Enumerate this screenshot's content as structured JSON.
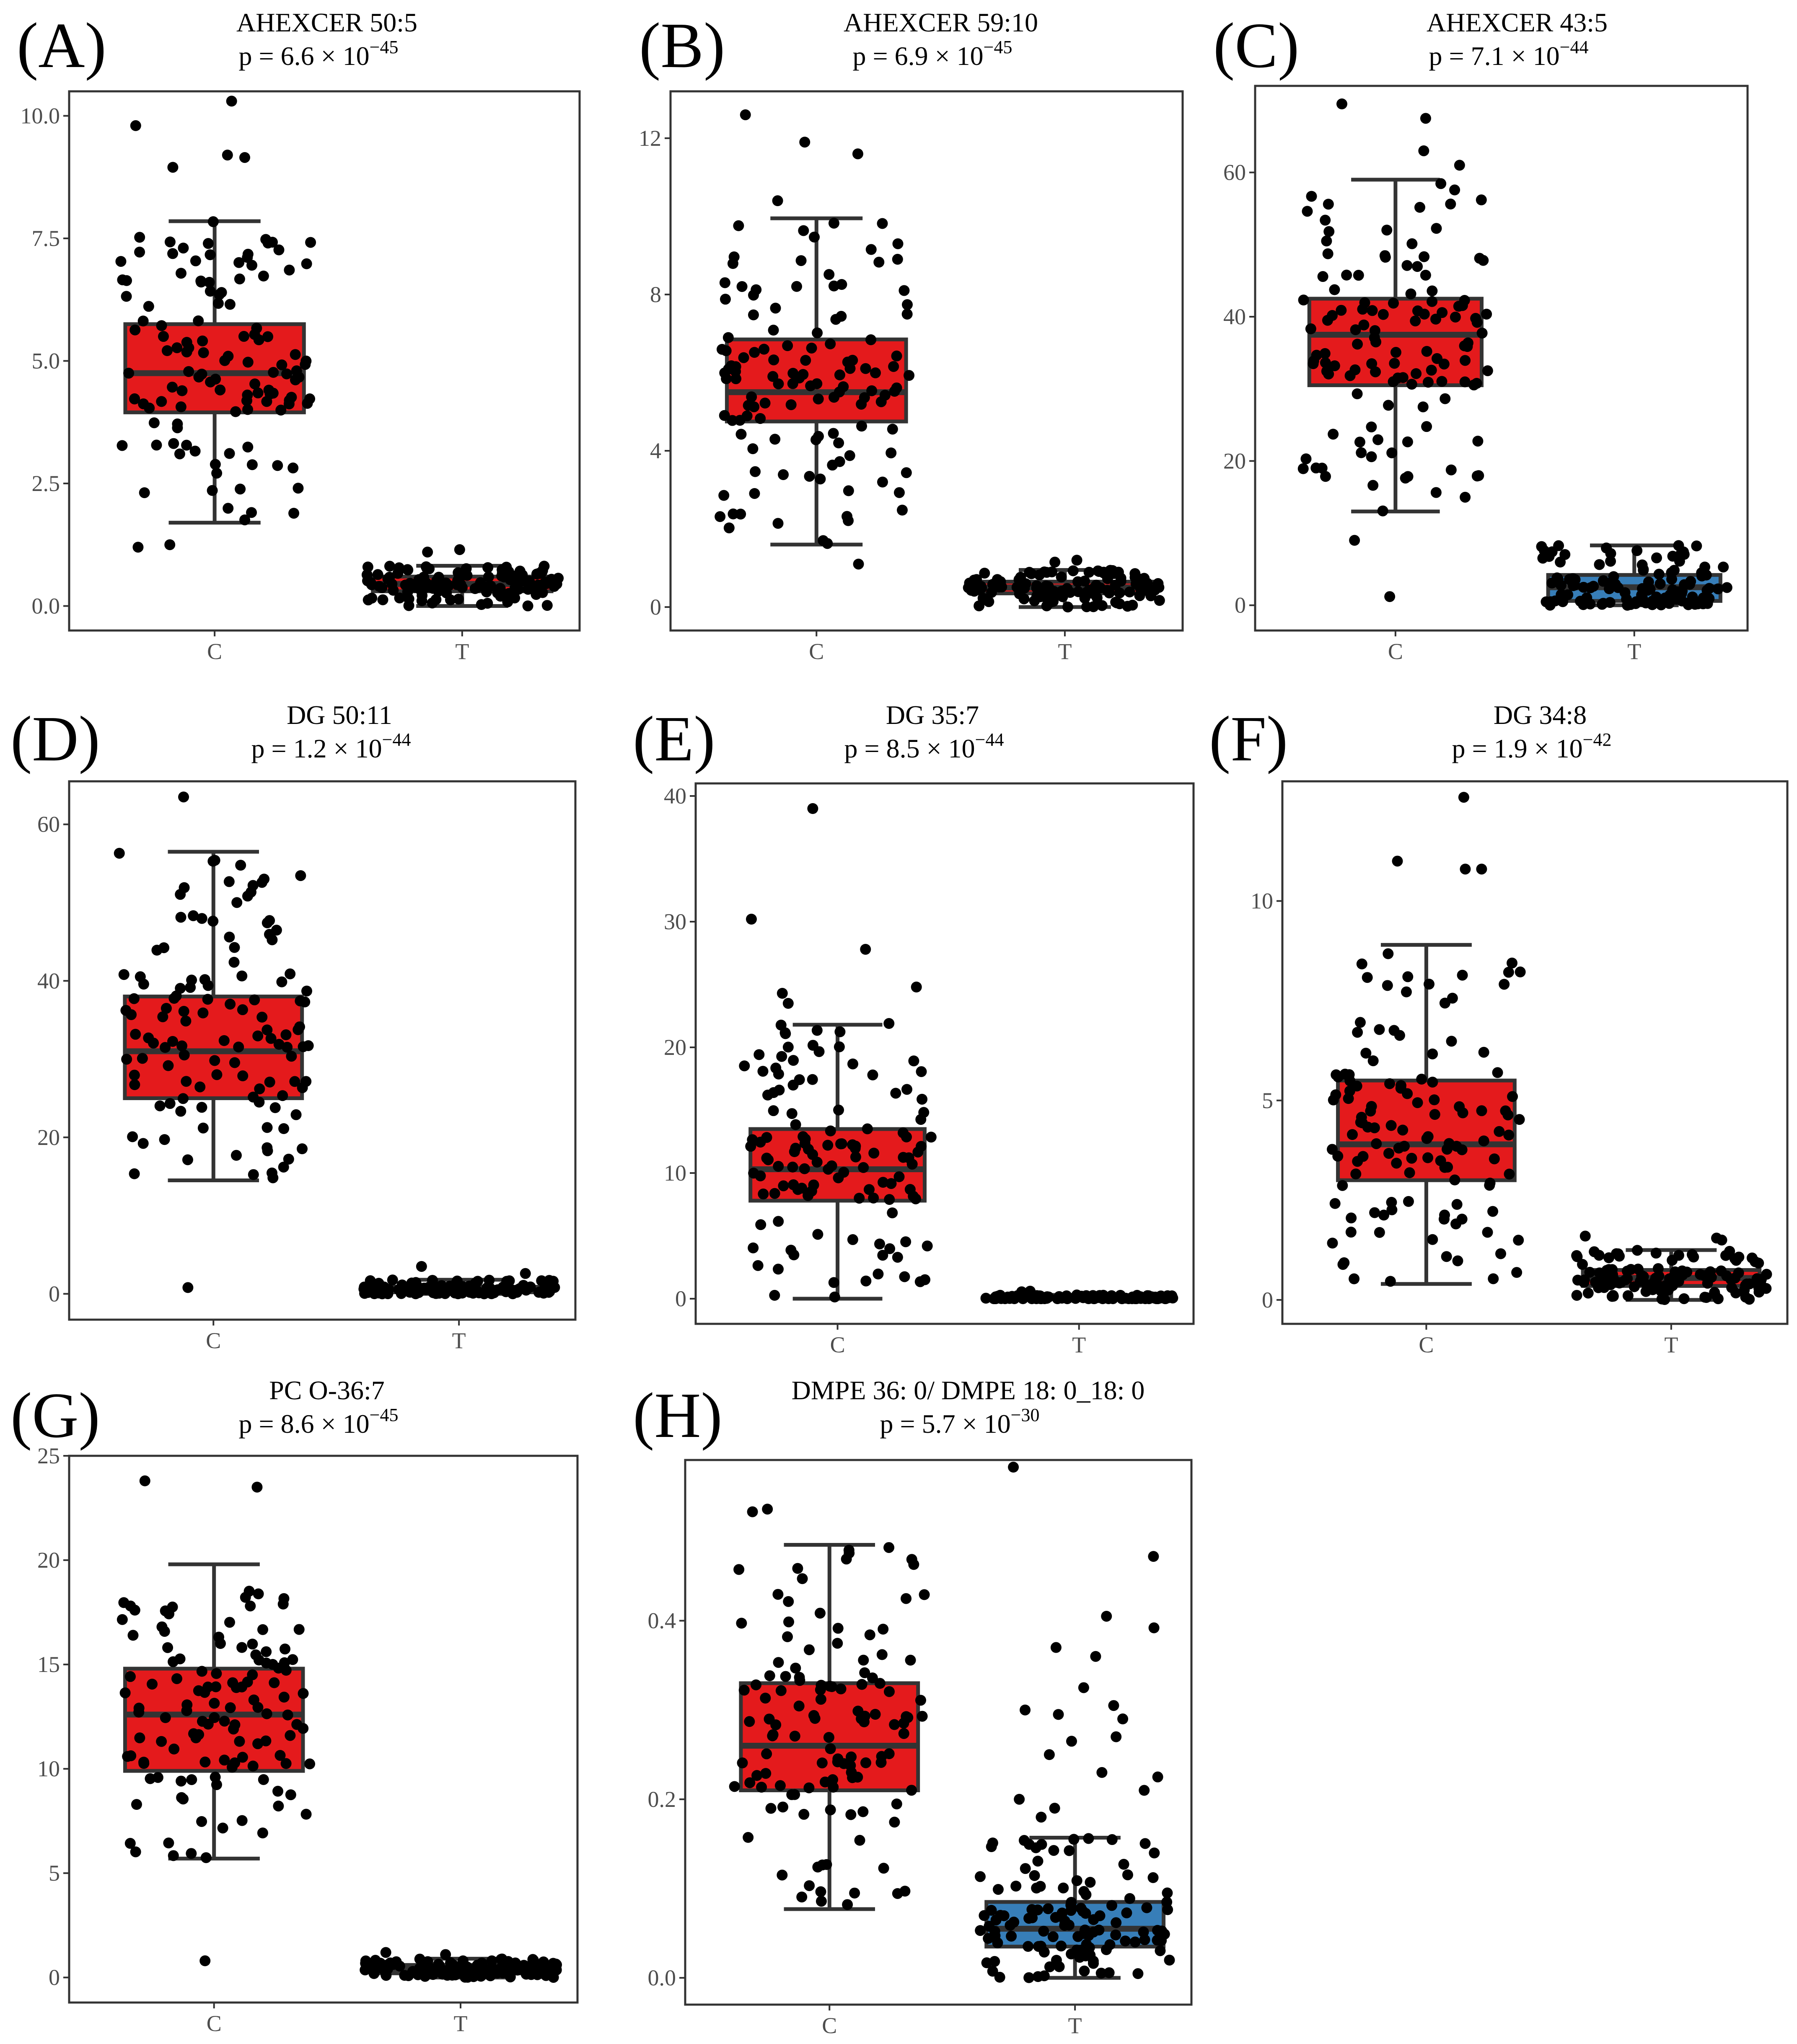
{
  "colors": {
    "control": "#e41a1c",
    "treatment": "#377eb8",
    "point": "#000000"
  },
  "chart_data": [
    {
      "type": "box",
      "panel": "(A)",
      "title": "AHEXCER 50:5",
      "p_prefix": "p = 6.6 × 10",
      "p_exp": "−45",
      "categories": [
        "C",
        "T"
      ],
      "ylim": [
        -0.5,
        10.5
      ],
      "yticks": [
        0,
        2.5,
        5,
        7.5,
        10
      ],
      "ytick_labels": [
        "0.0",
        "2.5",
        "5.0",
        "7.5",
        "10.0"
      ],
      "groups": [
        {
          "name": "C",
          "color": "#e41a1c",
          "q1": 3.95,
          "median": 4.75,
          "q3": 5.75,
          "whisker_low": 1.7,
          "whisker_high": 7.85,
          "outliers": [
            10.3,
            9.2,
            9.15,
            9.8,
            8.95,
            1.25,
            1.2
          ],
          "points_n": 120,
          "spread": [
            1.7,
            7.85
          ]
        },
        {
          "name": "T",
          "color": "#e41a1c",
          "q1": 0.3,
          "median": 0.45,
          "q3": 0.6,
          "whisker_low": 0.0,
          "whisker_high": 0.82,
          "outliers": [
            1.15,
            1.1
          ],
          "points_n": 120,
          "spread": [
            0.0,
            0.82
          ]
        }
      ]
    },
    {
      "type": "box",
      "panel": "(B)",
      "title": "AHEXCER 59:10",
      "p_prefix": "p = 6.9 × 10",
      "p_exp": "−45",
      "categories": [
        "C",
        "T"
      ],
      "ylim": [
        -0.6,
        13.2
      ],
      "yticks": [
        0,
        4,
        8,
        12
      ],
      "ytick_labels": [
        "0",
        "4",
        "8",
        "12"
      ],
      "groups": [
        {
          "name": "C",
          "color": "#e41a1c",
          "q1": 4.75,
          "median": 5.5,
          "q3": 6.85,
          "whisker_low": 1.6,
          "whisker_high": 9.95,
          "outliers": [
            12.6,
            11.9,
            11.6,
            10.4,
            1.1
          ],
          "points_n": 120,
          "spread": [
            1.6,
            9.95
          ]
        },
        {
          "name": "T",
          "color": "#e41a1c",
          "q1": 0.35,
          "median": 0.5,
          "q3": 0.65,
          "whisker_low": 0.0,
          "whisker_high": 0.95,
          "outliers": [
            1.2,
            1.15
          ],
          "points_n": 120,
          "spread": [
            0.0,
            0.95
          ]
        }
      ]
    },
    {
      "type": "box",
      "panel": "(C)",
      "title": "AHEXCER 43:5",
      "p_prefix": "p = 7.1 × 10",
      "p_exp": "−44",
      "categories": [
        "C",
        "T"
      ],
      "ylim": [
        -3.5,
        72
      ],
      "yticks": [
        0,
        20,
        40,
        60
      ],
      "ytick_labels": [
        "0",
        "20",
        "40",
        "60"
      ],
      "groups": [
        {
          "name": "C",
          "color": "#e41a1c",
          "q1": 30.5,
          "median": 37.5,
          "q3": 42.5,
          "whisker_low": 13.0,
          "whisker_high": 59.0,
          "outliers": [
            69.5,
            67.5,
            63.0,
            61.0,
            9.0,
            1.2
          ],
          "points_n": 120,
          "spread": [
            13.0,
            59.0
          ]
        },
        {
          "name": "T",
          "color": "#377eb8",
          "q1": 0.6,
          "median": 2.5,
          "q3": 4.2,
          "whisker_low": 0.0,
          "whisker_high": 8.3,
          "outliers": [],
          "points_n": 120,
          "spread": [
            0.0,
            8.3
          ]
        }
      ]
    },
    {
      "type": "box",
      "panel": "(D)",
      "title": "DG 50:11",
      "p_prefix": "p = 1.2 × 10",
      "p_exp": "−44",
      "categories": [
        "C",
        "T"
      ],
      "ylim": [
        -3.3,
        65.5
      ],
      "yticks": [
        0,
        20,
        40,
        60
      ],
      "ytick_labels": [
        "0",
        "20",
        "40",
        "60"
      ],
      "groups": [
        {
          "name": "C",
          "color": "#e41a1c",
          "q1": 25.0,
          "median": 31.0,
          "q3": 38.0,
          "whisker_low": 14.5,
          "whisker_high": 56.5,
          "outliers": [
            63.5,
            0.8
          ],
          "points_n": 120,
          "spread": [
            14.5,
            56.5
          ]
        },
        {
          "name": "T",
          "color": "#e41a1c",
          "q1": 0.2,
          "median": 0.5,
          "q3": 0.9,
          "whisker_low": 0.0,
          "whisker_high": 1.8,
          "outliers": [
            3.5,
            2.6
          ],
          "points_n": 120,
          "spread": [
            0.0,
            1.8
          ]
        }
      ]
    },
    {
      "type": "box",
      "panel": "(E)",
      "title": "DG 35:7",
      "p_prefix": "p = 8.5 × 10",
      "p_exp": "−44",
      "categories": [
        "C",
        "T"
      ],
      "ylim": [
        -2.0,
        41.0
      ],
      "yticks": [
        0,
        10,
        20,
        30,
        40
      ],
      "ytick_labels": [
        "0",
        "10",
        "20",
        "30",
        "40"
      ],
      "groups": [
        {
          "name": "C",
          "color": "#e41a1c",
          "q1": 7.8,
          "median": 10.3,
          "q3": 13.5,
          "whisker_low": 0.0,
          "whisker_high": 21.8,
          "outliers": [
            39.0,
            30.2,
            27.8,
            24.8,
            24.3,
            23.5,
            21.9
          ],
          "points_n": 120,
          "spread": [
            0.0,
            21.8
          ]
        },
        {
          "name": "T",
          "color": "#e41a1c",
          "q1": 0.0,
          "median": 0.05,
          "q3": 0.15,
          "whisker_low": 0.0,
          "whisker_high": 0.3,
          "outliers": [
            0.6,
            0.55
          ],
          "points_n": 120,
          "spread": [
            0.0,
            0.3
          ]
        }
      ]
    },
    {
      "type": "box",
      "panel": "(F)",
      "title": "DG 34:8",
      "p_prefix": "p = 1.9 × 10",
      "p_exp": "−42",
      "categories": [
        "C",
        "T"
      ],
      "ylim": [
        -0.6,
        13.0
      ],
      "yticks": [
        0,
        5,
        10
      ],
      "ytick_labels": [
        "0",
        "5",
        "10"
      ],
      "groups": [
        {
          "name": "C",
          "color": "#e41a1c",
          "q1": 3.0,
          "median": 3.9,
          "q3": 5.5,
          "whisker_low": 0.4,
          "whisker_high": 8.9,
          "outliers": [
            12.6,
            11.0,
            10.8,
            10.8
          ],
          "points_n": 120,
          "spread": [
            0.4,
            8.9
          ]
        },
        {
          "name": "T",
          "color": "#e41a1c",
          "q1": 0.35,
          "median": 0.55,
          "q3": 0.75,
          "whisker_low": 0.0,
          "whisker_high": 1.25,
          "outliers": [
            1.6,
            1.55,
            1.5
          ],
          "points_n": 120,
          "spread": [
            0.0,
            1.25
          ]
        }
      ]
    },
    {
      "type": "box",
      "panel": "(G)",
      "title": "PC O-36:7",
      "p_prefix": "p = 8.6 × 10",
      "p_exp": "−45",
      "categories": [
        "C",
        "T"
      ],
      "ylim": [
        -1.2,
        25.0
      ],
      "yticks": [
        0,
        5,
        10,
        15,
        20,
        25
      ],
      "ytick_labels": [
        "0",
        "5",
        "10",
        "15",
        "20",
        "25"
      ],
      "groups": [
        {
          "name": "C",
          "color": "#e41a1c",
          "q1": 9.9,
          "median": 12.6,
          "q3": 14.8,
          "whisker_low": 5.7,
          "whisker_high": 19.8,
          "outliers": [
            23.8,
            23.5,
            0.8
          ],
          "points_n": 120,
          "spread": [
            5.7,
            19.8
          ]
        },
        {
          "name": "T",
          "color": "#e41a1c",
          "q1": 0.2,
          "median": 0.4,
          "q3": 0.6,
          "whisker_low": 0.0,
          "whisker_high": 0.9,
          "outliers": [
            1.2,
            1.1
          ],
          "points_n": 120,
          "spread": [
            0.0,
            0.9
          ]
        }
      ]
    },
    {
      "type": "box",
      "panel": "(H)",
      "title": "DMPE 36: 0/ DMPE 18: 0_18: 0",
      "p_prefix": "p = 5.7 × 10",
      "p_exp": "−30",
      "categories": [
        "C",
        "T"
      ],
      "ylim": [
        -0.03,
        0.58
      ],
      "yticks": [
        0,
        0.2,
        0.4
      ],
      "ytick_labels": [
        "0.0",
        "0.2",
        "0.4"
      ],
      "groups": [
        {
          "name": "C",
          "color": "#e41a1c",
          "q1": 0.21,
          "median": 0.26,
          "q3": 0.33,
          "whisker_low": 0.077,
          "whisker_high": 0.485,
          "outliers": [
            0.525,
            0.522
          ],
          "points_n": 120,
          "spread": [
            0.077,
            0.485
          ]
        },
        {
          "name": "T",
          "color": "#377eb8",
          "q1": 0.035,
          "median": 0.055,
          "q3": 0.085,
          "whisker_low": 0.0,
          "whisker_high": 0.157,
          "outliers": [
            0.572,
            0.472,
            0.405,
            0.392,
            0.37,
            0.36,
            0.325,
            0.305,
            0.3,
            0.295,
            0.29,
            0.27,
            0.265,
            0.25,
            0.23,
            0.225,
            0.21,
            0.2,
            0.19,
            0.18
          ],
          "points_n": 120,
          "spread": [
            0.0,
            0.157
          ]
        }
      ]
    }
  ]
}
